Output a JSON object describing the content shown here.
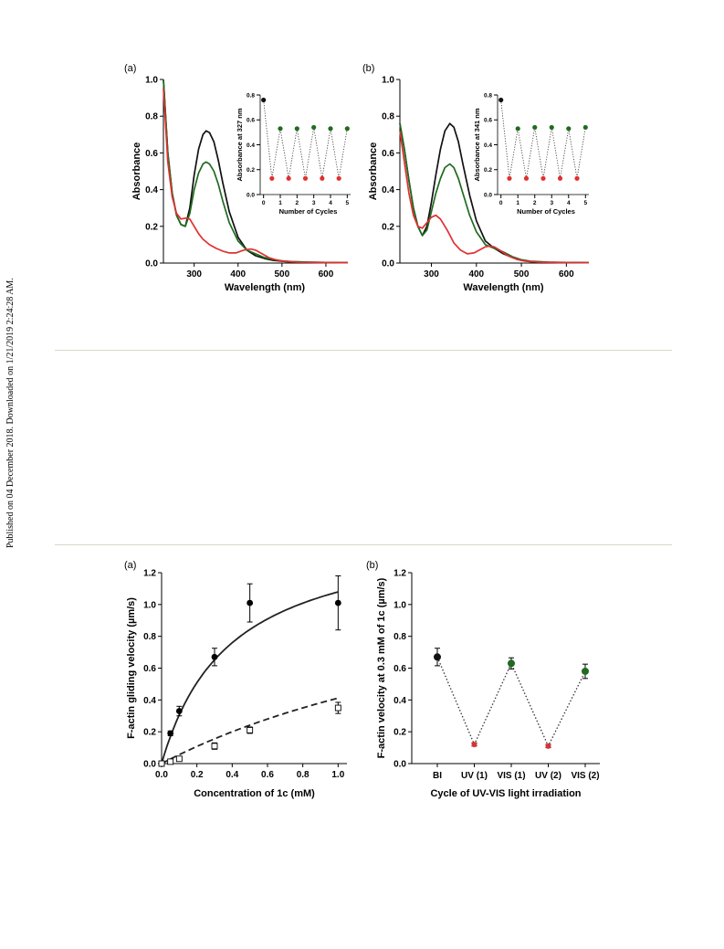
{
  "page": {
    "side_note": "Published on 04 December 2018. Downloaded on 1/21/2019 2:24:28 AM."
  },
  "chart_data": [
    {
      "panel": "(a)",
      "type": "line",
      "xlabel": "Wavelength (nm)",
      "ylabel": "Absorbance",
      "xlim": [
        230,
        650
      ],
      "ylim": [
        0,
        1.0
      ],
      "xticks": [
        "300",
        "400",
        "500",
        "600"
      ],
      "xtick_values": [
        300,
        400,
        500,
        600
      ],
      "yticks": [
        "0.0",
        "0.2",
        "0.4",
        "0.6",
        "0.8",
        "1.0"
      ],
      "ytick_values": [
        0,
        0.2,
        0.4,
        0.6,
        0.8,
        1.0
      ],
      "series": [
        {
          "color": "#111111",
          "x": [
            230,
            240,
            250,
            260,
            270,
            280,
            290,
            300,
            310,
            320,
            327,
            335,
            345,
            355,
            365,
            380,
            400,
            420,
            440,
            460,
            480,
            500,
            520,
            560,
            600,
            650
          ],
          "y": [
            1.0,
            0.6,
            0.38,
            0.26,
            0.21,
            0.2,
            0.3,
            0.48,
            0.62,
            0.7,
            0.72,
            0.71,
            0.66,
            0.56,
            0.44,
            0.28,
            0.14,
            0.07,
            0.04,
            0.025,
            0.015,
            0.01,
            0.006,
            0.004,
            0.003,
            0.002
          ]
        },
        {
          "color": "#1f6b1f",
          "x": [
            230,
            240,
            250,
            260,
            270,
            280,
            290,
            300,
            310,
            320,
            327,
            335,
            345,
            355,
            365,
            380,
            400,
            420,
            440,
            460,
            480,
            500,
            520,
            560,
            600,
            650
          ],
          "y": [
            1.0,
            0.6,
            0.38,
            0.26,
            0.21,
            0.2,
            0.27,
            0.4,
            0.49,
            0.54,
            0.55,
            0.54,
            0.5,
            0.43,
            0.34,
            0.22,
            0.12,
            0.07,
            0.05,
            0.03,
            0.02,
            0.012,
            0.008,
            0.005,
            0.003,
            0.002
          ]
        },
        {
          "color": "#e03030",
          "x": [
            230,
            240,
            250,
            260,
            270,
            280,
            290,
            300,
            310,
            320,
            335,
            350,
            365,
            380,
            395,
            410,
            420,
            430,
            440,
            455,
            470,
            490,
            510,
            540,
            580,
            650
          ],
          "y": [
            0.95,
            0.55,
            0.36,
            0.27,
            0.24,
            0.245,
            0.24,
            0.2,
            0.16,
            0.13,
            0.1,
            0.08,
            0.065,
            0.055,
            0.055,
            0.068,
            0.074,
            0.076,
            0.07,
            0.05,
            0.03,
            0.015,
            0.008,
            0.004,
            0.003,
            0.002
          ]
        }
      ],
      "inset": {
        "type": "scatter",
        "xlabel": "Number of Cycles",
        "ylabel": "Absorbance at 327 nm",
        "xlim": [
          -0.2,
          5.2
        ],
        "ylim": [
          0,
          0.8
        ],
        "xticks": [
          "0",
          "1",
          "2",
          "3",
          "4",
          "5"
        ],
        "xtick_values": [
          0,
          1,
          2,
          3,
          4,
          5
        ],
        "yticks": [
          "0.0",
          "0.2",
          "0.4",
          "0.6",
          "0.8"
        ],
        "ytick_values": [
          0,
          0.2,
          0.4,
          0.6,
          0.8
        ],
        "x": [
          0,
          0.5,
          1,
          1.5,
          2,
          2.5,
          3,
          3.5,
          4,
          4.5,
          5
        ],
        "y": [
          0.76,
          0.13,
          0.53,
          0.13,
          0.53,
          0.13,
          0.54,
          0.13,
          0.53,
          0.13,
          0.53
        ],
        "colors": [
          "#111111",
          "#e03030",
          "#1f6b1f",
          "#e03030",
          "#1f6b1f",
          "#e03030",
          "#1f6b1f",
          "#e03030",
          "#1f6b1f",
          "#e03030",
          "#1f6b1f"
        ]
      }
    },
    {
      "panel": "(b)",
      "type": "line",
      "xlabel": "Wavelength (nm)",
      "ylabel": "Absorbance",
      "xlim": [
        230,
        650
      ],
      "ylim": [
        0,
        1.0
      ],
      "xticks": [
        "300",
        "400",
        "500",
        "600"
      ],
      "xtick_values": [
        300,
        400,
        500,
        600
      ],
      "yticks": [
        "0.0",
        "0.2",
        "0.4",
        "0.6",
        "0.8",
        "1.0"
      ],
      "ytick_values": [
        0,
        0.2,
        0.4,
        0.6,
        0.8,
        1.0
      ],
      "series": [
        {
          "color": "#111111",
          "x": [
            230,
            240,
            250,
            260,
            270,
            280,
            290,
            300,
            310,
            320,
            330,
            341,
            350,
            360,
            370,
            385,
            400,
            420,
            440,
            460,
            480,
            500,
            520,
            560,
            600,
            650
          ],
          "y": [
            0.76,
            0.62,
            0.45,
            0.3,
            0.2,
            0.15,
            0.2,
            0.33,
            0.48,
            0.62,
            0.72,
            0.76,
            0.74,
            0.66,
            0.54,
            0.37,
            0.23,
            0.12,
            0.08,
            0.05,
            0.03,
            0.015,
            0.008,
            0.004,
            0.003,
            0.002
          ]
        },
        {
          "color": "#1f6b1f",
          "x": [
            230,
            240,
            250,
            260,
            270,
            280,
            290,
            300,
            310,
            320,
            330,
            341,
            350,
            360,
            370,
            385,
            400,
            420,
            440,
            460,
            480,
            500,
            520,
            560,
            600,
            650
          ],
          "y": [
            0.76,
            0.62,
            0.45,
            0.3,
            0.2,
            0.15,
            0.18,
            0.28,
            0.38,
            0.46,
            0.52,
            0.54,
            0.52,
            0.46,
            0.38,
            0.26,
            0.17,
            0.1,
            0.08,
            0.06,
            0.035,
            0.018,
            0.01,
            0.005,
            0.003,
            0.002
          ]
        },
        {
          "color": "#e03030",
          "x": [
            230,
            240,
            250,
            260,
            270,
            280,
            290,
            300,
            310,
            320,
            335,
            350,
            365,
            380,
            395,
            410,
            420,
            430,
            440,
            455,
            470,
            490,
            510,
            540,
            580,
            650
          ],
          "y": [
            0.72,
            0.55,
            0.38,
            0.26,
            0.2,
            0.19,
            0.22,
            0.25,
            0.26,
            0.24,
            0.18,
            0.11,
            0.07,
            0.05,
            0.055,
            0.075,
            0.088,
            0.093,
            0.088,
            0.065,
            0.04,
            0.02,
            0.01,
            0.005,
            0.003,
            0.002
          ]
        }
      ],
      "inset": {
        "type": "scatter",
        "xlabel": "Number of Cycles",
        "ylabel": "Absorbance at 341 nm",
        "xlim": [
          -0.2,
          5.2
        ],
        "ylim": [
          0,
          0.8
        ],
        "xticks": [
          "0",
          "1",
          "2",
          "3",
          "4",
          "5"
        ],
        "xtick_values": [
          0,
          1,
          2,
          3,
          4,
          5
        ],
        "yticks": [
          "0.0",
          "0.2",
          "0.4",
          "0.6",
          "0.8"
        ],
        "ytick_values": [
          0,
          0.2,
          0.4,
          0.6,
          0.8
        ],
        "x": [
          0,
          0.5,
          1,
          1.5,
          2,
          2.5,
          3,
          3.5,
          4,
          4.5,
          5
        ],
        "y": [
          0.76,
          0.13,
          0.53,
          0.13,
          0.54,
          0.13,
          0.54,
          0.13,
          0.53,
          0.13,
          0.54
        ],
        "colors": [
          "#111111",
          "#e03030",
          "#1f6b1f",
          "#e03030",
          "#1f6b1f",
          "#e03030",
          "#1f6b1f",
          "#e03030",
          "#1f6b1f",
          "#e03030",
          "#1f6b1f"
        ]
      }
    },
    {
      "panel": "(a)",
      "type": "scatter",
      "xlabel": "Concentration of 1c (mM)",
      "ylabel": "F-actin gliding velocity (µm/s)",
      "xlim": [
        0,
        1.05
      ],
      "ylim": [
        0,
        1.2
      ],
      "xticks": [
        "0.0",
        "0.2",
        "0.4",
        "0.6",
        "0.8",
        "1.0"
      ],
      "xtick_values": [
        0,
        0.2,
        0.4,
        0.6,
        0.8,
        1.0
      ],
      "yticks": [
        "0.0",
        "0.2",
        "0.4",
        "0.6",
        "0.8",
        "1.0",
        "1.2"
      ],
      "ytick_values": [
        0,
        0.2,
        0.4,
        0.6,
        0.8,
        1.0,
        1.2
      ],
      "series": [
        {
          "marker": "filled-circle",
          "x": [
            0,
            0.05,
            0.1,
            0.3,
            0.5,
            1.0
          ],
          "y": [
            0,
            0.19,
            0.33,
            0.67,
            1.01,
            1.01
          ],
          "err": [
            0,
            0.015,
            0.03,
            0.055,
            0.12,
            0.17
          ],
          "fit": {
            "type": "michaelis-menten",
            "vmax": 1.5,
            "km": 0.39
          }
        },
        {
          "marker": "open-square",
          "x": [
            0,
            0.05,
            0.1,
            0.3,
            0.5,
            1.0
          ],
          "y": [
            0,
            0.012,
            0.03,
            0.11,
            0.21,
            0.35
          ],
          "err": [
            0,
            0.005,
            0.008,
            0.02,
            0.02,
            0.035
          ],
          "fit": {
            "type": "michaelis-menten",
            "vmax": 1.4,
            "km": 2.4,
            "dashed": true
          }
        }
      ]
    },
    {
      "panel": "(b)",
      "type": "scatter",
      "xlabel": "Cycle of UV-VIS light irradiation",
      "ylabel": "F-actin velocity at 0.3 mM of 1c (µm/s)",
      "ylim": [
        0,
        1.2
      ],
      "yticks": [
        "0.0",
        "0.2",
        "0.4",
        "0.6",
        "0.8",
        "1.0",
        "1.2"
      ],
      "ytick_values": [
        0,
        0.2,
        0.4,
        0.6,
        0.8,
        1.0,
        1.2
      ],
      "categories": [
        "BI",
        "UV (1)",
        "VIS (1)",
        "UV (2)",
        "VIS (2)"
      ],
      "values": [
        0.67,
        0.12,
        0.63,
        0.11,
        0.58
      ],
      "err": [
        0.055,
        0.01,
        0.035,
        0.01,
        0.045
      ],
      "colors": [
        "#111111",
        "#e03030",
        "#1f6b1f",
        "#e03030",
        "#1f6b1f"
      ]
    }
  ]
}
